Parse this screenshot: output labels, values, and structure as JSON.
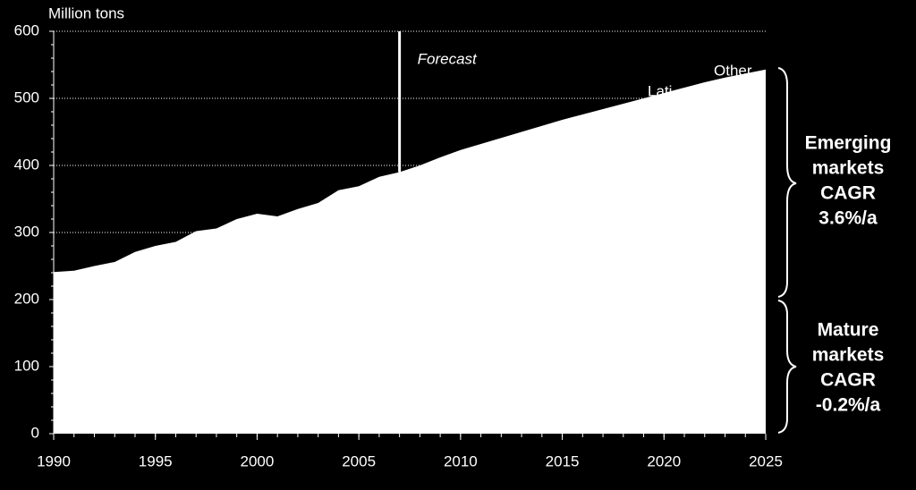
{
  "chart_data": {
    "type": "area",
    "y_axis_label": "Million tons",
    "x": [
      1990,
      1991,
      1992,
      1993,
      1994,
      1995,
      1996,
      1997,
      1998,
      1999,
      2000,
      2001,
      2002,
      2003,
      2004,
      2005,
      2006,
      2007,
      2008,
      2009,
      2010,
      2011,
      2012,
      2013,
      2014,
      2015,
      2016,
      2017,
      2018,
      2019,
      2020,
      2021,
      2022,
      2023,
      2024,
      2025
    ],
    "values": [
      241,
      243,
      250,
      256,
      271,
      280,
      286,
      302,
      306,
      320,
      328,
      324,
      335,
      344,
      363,
      369,
      383,
      390,
      400,
      412,
      423,
      432,
      441,
      450,
      459,
      468,
      476,
      484,
      492,
      500,
      508,
      516,
      524,
      531,
      537,
      543
    ],
    "color": "#ffffff",
    "xlim": [
      1990,
      2025
    ],
    "xticks": [
      1990,
      1995,
      2000,
      2005,
      2010,
      2015,
      2020,
      2025
    ],
    "ylim": [
      0,
      600
    ],
    "yticks": [
      0,
      100,
      200,
      300,
      400,
      500,
      600
    ],
    "grid": true,
    "forecast": {
      "text": "Forecast",
      "x": 2007
    },
    "series_labels": [
      "Other",
      "Lati"
    ],
    "emerging_label": [
      "Emerging",
      "markets",
      "CAGR",
      "3.6%/a"
    ],
    "mature_label": [
      "Mature",
      "markets",
      "CAGR",
      "-0.2%/a"
    ]
  }
}
